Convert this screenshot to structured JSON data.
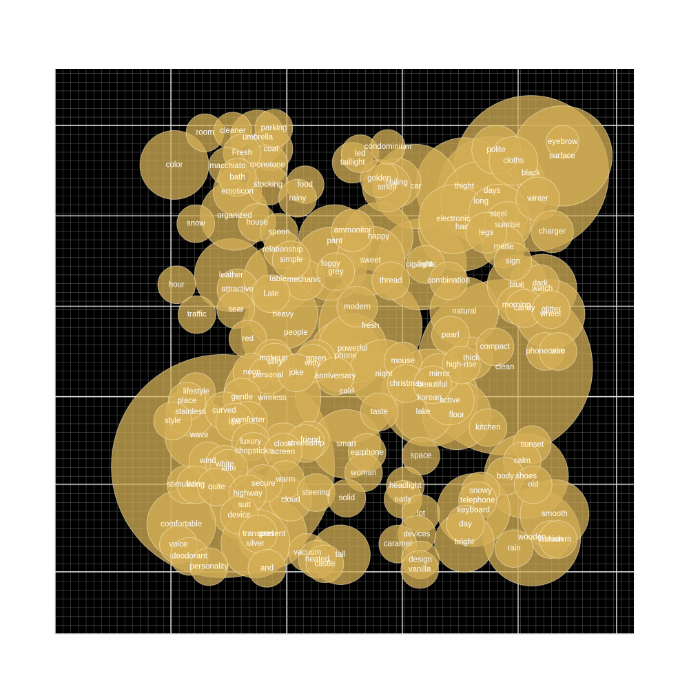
{
  "chart_data": {
    "type": "bubble",
    "title": "",
    "xlabel": "",
    "ylabel": "",
    "xlim": [
      0,
      1
    ],
    "ylim": [
      0,
      1
    ],
    "grid": true,
    "colors": {
      "background": "#000000",
      "bubble": "#d4af55",
      "major_grid": "#dddddd",
      "minor_grid": "#555555",
      "label": "#ffffff"
    },
    "points": [
      {
        "label": "eyebrow",
        "x": 0.877,
        "y": 0.871,
        "size": 9
      },
      {
        "label": "surface",
        "x": 0.876,
        "y": 0.846,
        "size": 85
      },
      {
        "label": "polite",
        "x": 0.762,
        "y": 0.857,
        "size": 20
      },
      {
        "label": "cloths",
        "x": 0.792,
        "y": 0.837,
        "size": 20
      },
      {
        "label": "black",
        "x": 0.822,
        "y": 0.815,
        "size": 205
      },
      {
        "label": "thight",
        "x": 0.707,
        "y": 0.792,
        "size": 80
      },
      {
        "label": "days",
        "x": 0.755,
        "y": 0.784,
        "size": 100
      },
      {
        "label": "long",
        "x": 0.736,
        "y": 0.765,
        "size": 55
      },
      {
        "label": "winter",
        "x": 0.834,
        "y": 0.77,
        "size": 16
      },
      {
        "label": "steel",
        "x": 0.766,
        "y": 0.743,
        "size": 30
      },
      {
        "label": "electronic",
        "x": 0.688,
        "y": 0.734,
        "size": 40
      },
      {
        "label": "sunrise",
        "x": 0.782,
        "y": 0.724,
        "size": 18
      },
      {
        "label": "hair",
        "x": 0.703,
        "y": 0.72,
        "size": 65
      },
      {
        "label": "legs",
        "x": 0.745,
        "y": 0.71,
        "size": 14
      },
      {
        "label": "charger",
        "x": 0.859,
        "y": 0.712,
        "size": 15
      },
      {
        "label": "matte",
        "x": 0.775,
        "y": 0.685,
        "size": 15
      },
      {
        "label": "car",
        "x": 0.623,
        "y": 0.792,
        "size": 60
      },
      {
        "label": "golden",
        "x": 0.56,
        "y": 0.806,
        "size": 12
      },
      {
        "label": "ceiling",
        "x": 0.59,
        "y": 0.799,
        "size": 20
      },
      {
        "label": "smell",
        "x": 0.573,
        "y": 0.79,
        "size": 20
      },
      {
        "label": "condominium",
        "x": 0.575,
        "y": 0.862,
        "size": 10
      },
      {
        "label": "led",
        "x": 0.527,
        "y": 0.85,
        "size": 12
      },
      {
        "label": "taillight",
        "x": 0.514,
        "y": 0.834,
        "size": 14
      },
      {
        "label": "room",
        "x": 0.259,
        "y": 0.887,
        "size": 12
      },
      {
        "label": "cleaner",
        "x": 0.307,
        "y": 0.89,
        "size": 12
      },
      {
        "label": "parking",
        "x": 0.378,
        "y": 0.895,
        "size": 12
      },
      {
        "label": "umbrella",
        "x": 0.35,
        "y": 0.879,
        "size": 25
      },
      {
        "label": "coat",
        "x": 0.373,
        "y": 0.858,
        "size": 16
      },
      {
        "label": "Fresh",
        "x": 0.323,
        "y": 0.851,
        "size": 12
      },
      {
        "label": "color",
        "x": 0.206,
        "y": 0.83,
        "size": 40
      },
      {
        "label": "macchiato",
        "x": 0.298,
        "y": 0.828,
        "size": 12
      },
      {
        "label": "monotone",
        "x": 0.367,
        "y": 0.83,
        "size": 14
      },
      {
        "label": "bath",
        "x": 0.315,
        "y": 0.808,
        "size": 12
      },
      {
        "label": "stocking",
        "x": 0.368,
        "y": 0.795,
        "size": 14
      },
      {
        "label": "food",
        "x": 0.432,
        "y": 0.795,
        "size": 12
      },
      {
        "label": "emoticon",
        "x": 0.315,
        "y": 0.783,
        "size": 20
      },
      {
        "label": "rainy",
        "x": 0.419,
        "y": 0.771,
        "size": 12
      },
      {
        "label": "organized",
        "x": 0.31,
        "y": 0.74,
        "size": 40
      },
      {
        "label": "house",
        "x": 0.349,
        "y": 0.728,
        "size": 12
      },
      {
        "label": "snow",
        "x": 0.243,
        "y": 0.726,
        "size": 12
      },
      {
        "label": "spoon",
        "x": 0.387,
        "y": 0.711,
        "size": 12
      },
      {
        "label": "ammonitor",
        "x": 0.514,
        "y": 0.714,
        "size": 15
      },
      {
        "label": "happy",
        "x": 0.559,
        "y": 0.703,
        "size": 40
      },
      {
        "label": "pant",
        "x": 0.483,
        "y": 0.695,
        "size": 45
      },
      {
        "label": "relationship",
        "x": 0.393,
        "y": 0.68,
        "size": 12
      },
      {
        "label": "sweet",
        "x": 0.545,
        "y": 0.661,
        "size": 40
      },
      {
        "label": "simple",
        "x": 0.408,
        "y": 0.662,
        "size": 12
      },
      {
        "label": "foggy",
        "x": 0.476,
        "y": 0.655,
        "size": 45
      },
      {
        "label": "grey",
        "x": 0.485,
        "y": 0.641,
        "size": 12
      },
      {
        "label": "cigarette",
        "x": 0.632,
        "y": 0.654,
        "size": 70
      },
      {
        "label": "light",
        "x": 0.64,
        "y": 0.654,
        "size": 12
      },
      {
        "label": "leather",
        "x": 0.304,
        "y": 0.635,
        "size": 45
      },
      {
        "label": "table",
        "x": 0.385,
        "y": 0.628,
        "size": 40
      },
      {
        "label": "mechanic",
        "x": 0.43,
        "y": 0.627,
        "size": 14
      },
      {
        "label": "thread",
        "x": 0.58,
        "y": 0.625,
        "size": 12
      },
      {
        "label": "combination",
        "x": 0.68,
        "y": 0.625,
        "size": 12
      },
      {
        "label": "hour",
        "x": 0.21,
        "y": 0.618,
        "size": 12
      },
      {
        "label": "attractive",
        "x": 0.315,
        "y": 0.61,
        "size": 14
      },
      {
        "label": "Late",
        "x": 0.373,
        "y": 0.602,
        "size": 12
      },
      {
        "label": "blue",
        "x": 0.798,
        "y": 0.618,
        "size": 30
      },
      {
        "label": "dark",
        "x": 0.838,
        "y": 0.62,
        "size": 12
      },
      {
        "label": "watch",
        "x": 0.842,
        "y": 0.611,
        "size": 40
      },
      {
        "label": "morning",
        "x": 0.797,
        "y": 0.582,
        "size": 12
      },
      {
        "label": "candy",
        "x": 0.811,
        "y": 0.576,
        "size": 12
      },
      {
        "label": "glitter",
        "x": 0.857,
        "y": 0.574,
        "size": 12
      },
      {
        "label": "wheel",
        "x": 0.856,
        "y": 0.566,
        "size": 40
      },
      {
        "label": "sign",
        "x": 0.791,
        "y": 0.659,
        "size": 12
      },
      {
        "label": "natural",
        "x": 0.707,
        "y": 0.571,
        "size": 40
      },
      {
        "label": "modern",
        "x": 0.522,
        "y": 0.579,
        "size": 14
      },
      {
        "label": "fresh",
        "x": 0.545,
        "y": 0.545,
        "size": 90
      },
      {
        "label": "traffic",
        "x": 0.245,
        "y": 0.565,
        "size": 12
      },
      {
        "label": "seat",
        "x": 0.312,
        "y": 0.574,
        "size": 12
      },
      {
        "label": "heavy",
        "x": 0.394,
        "y": 0.565,
        "size": 40
      },
      {
        "label": "people",
        "x": 0.416,
        "y": 0.533,
        "size": 100
      },
      {
        "label": "pearl",
        "x": 0.683,
        "y": 0.529,
        "size": 12
      },
      {
        "label": "red",
        "x": 0.333,
        "y": 0.522,
        "size": 12
      },
      {
        "label": "compact",
        "x": 0.76,
        "y": 0.508,
        "size": 12
      },
      {
        "label": "clean",
        "x": 0.777,
        "y": 0.472,
        "size": 260
      },
      {
        "label": "phonecase",
        "x": 0.847,
        "y": 0.5,
        "size": 12
      },
      {
        "label": "wire",
        "x": 0.869,
        "y": 0.5,
        "size": 12
      },
      {
        "label": "thick",
        "x": 0.719,
        "y": 0.488,
        "size": 15
      },
      {
        "label": "high-rise",
        "x": 0.702,
        "y": 0.476,
        "size": 12
      },
      {
        "label": "powerful",
        "x": 0.514,
        "y": 0.505,
        "size": 40
      },
      {
        "label": "phone",
        "x": 0.502,
        "y": 0.492,
        "size": 45
      },
      {
        "label": "makeup",
        "x": 0.377,
        "y": 0.488,
        "size": 12
      },
      {
        "label": "silky",
        "x": 0.38,
        "y": 0.481,
        "size": 12
      },
      {
        "label": "green",
        "x": 0.451,
        "y": 0.487,
        "size": 12
      },
      {
        "label": "witty",
        "x": 0.445,
        "y": 0.479,
        "size": 12
      },
      {
        "label": "mouse",
        "x": 0.601,
        "y": 0.483,
        "size": 12
      },
      {
        "label": "neon",
        "x": 0.34,
        "y": 0.463,
        "size": 12
      },
      {
        "label": "personal",
        "x": 0.368,
        "y": 0.458,
        "size": 12
      },
      {
        "label": "joke",
        "x": 0.417,
        "y": 0.462,
        "size": 12
      },
      {
        "label": "anniversary",
        "x": 0.484,
        "y": 0.456,
        "size": 12
      },
      {
        "label": "night",
        "x": 0.568,
        "y": 0.46,
        "size": 40
      },
      {
        "label": "mirror",
        "x": 0.664,
        "y": 0.46,
        "size": 14
      },
      {
        "label": "christmas",
        "x": 0.607,
        "y": 0.443,
        "size": 12
      },
      {
        "label": "beautiful",
        "x": 0.652,
        "y": 0.441,
        "size": 12
      },
      {
        "label": "cold",
        "x": 0.504,
        "y": 0.429,
        "size": 90
      },
      {
        "label": "korean",
        "x": 0.647,
        "y": 0.418,
        "size": 80
      },
      {
        "label": "active",
        "x": 0.682,
        "y": 0.413,
        "size": 20
      },
      {
        "label": "lifestyle",
        "x": 0.244,
        "y": 0.429,
        "size": 12
      },
      {
        "label": "gentle",
        "x": 0.323,
        "y": 0.419,
        "size": 12
      },
      {
        "label": "wireless",
        "x": 0.375,
        "y": 0.418,
        "size": 80
      },
      {
        "label": "place",
        "x": 0.228,
        "y": 0.412,
        "size": 12
      },
      {
        "label": "curved",
        "x": 0.292,
        "y": 0.395,
        "size": 12
      },
      {
        "label": "stainless",
        "x": 0.234,
        "y": 0.393,
        "size": 20
      },
      {
        "label": "taste",
        "x": 0.56,
        "y": 0.393,
        "size": 12
      },
      {
        "label": "lake",
        "x": 0.636,
        "y": 0.393,
        "size": 30
      },
      {
        "label": "floor",
        "x": 0.694,
        "y": 0.387,
        "size": 40
      },
      {
        "label": "comforter",
        "x": 0.334,
        "y": 0.378,
        "size": 12
      },
      {
        "label": "lips",
        "x": 0.31,
        "y": 0.375,
        "size": 12
      },
      {
        "label": "style",
        "x": 0.203,
        "y": 0.377,
        "size": 12
      },
      {
        "label": "kitchen",
        "x": 0.748,
        "y": 0.365,
        "size": 12
      },
      {
        "label": "wave",
        "x": 0.249,
        "y": 0.352,
        "size": 40
      },
      {
        "label": "luxury",
        "x": 0.338,
        "y": 0.34,
        "size": 12
      },
      {
        "label": "friend",
        "x": 0.441,
        "y": 0.343,
        "size": 12
      },
      {
        "label": "streetlamp",
        "x": 0.433,
        "y": 0.337,
        "size": 12
      },
      {
        "label": "close",
        "x": 0.394,
        "y": 0.336,
        "size": 15
      },
      {
        "label": "smart",
        "x": 0.503,
        "y": 0.336,
        "size": 40
      },
      {
        "label": "chopsticks",
        "x": 0.343,
        "y": 0.323,
        "size": 12
      },
      {
        "label": "screen",
        "x": 0.394,
        "y": 0.322,
        "size": 12
      },
      {
        "label": "earphone",
        "x": 0.539,
        "y": 0.321,
        "size": 12
      },
      {
        "label": "space",
        "x": 0.632,
        "y": 0.315,
        "size": 12
      },
      {
        "label": "sunset",
        "x": 0.824,
        "y": 0.335,
        "size": 12
      },
      {
        "label": "calm",
        "x": 0.807,
        "y": 0.306,
        "size": 12
      },
      {
        "label": "wind",
        "x": 0.264,
        "y": 0.306,
        "size": 12
      },
      {
        "label": "white",
        "x": 0.293,
        "y": 0.3,
        "size": 12
      },
      {
        "label": "latte",
        "x": 0.3,
        "y": 0.293,
        "size": 12
      },
      {
        "label": "body",
        "x": 0.778,
        "y": 0.279,
        "size": 12
      },
      {
        "label": "shoes",
        "x": 0.814,
        "y": 0.279,
        "size": 60
      },
      {
        "label": "old",
        "x": 0.826,
        "y": 0.264,
        "size": 12
      },
      {
        "label": "woman",
        "x": 0.533,
        "y": 0.285,
        "size": 12
      },
      {
        "label": "warm",
        "x": 0.398,
        "y": 0.273,
        "size": 12
      },
      {
        "label": "secure",
        "x": 0.36,
        "y": 0.266,
        "size": 12
      },
      {
        "label": "stimulating",
        "x": 0.226,
        "y": 0.264,
        "size": 12
      },
      {
        "label": "living",
        "x": 0.243,
        "y": 0.264,
        "size": 12
      },
      {
        "label": "quite",
        "x": 0.279,
        "y": 0.26,
        "size": 12
      },
      {
        "label": "headlight",
        "x": 0.605,
        "y": 0.262,
        "size": 12
      },
      {
        "label": "highway",
        "x": 0.333,
        "y": 0.248,
        "size": 12
      },
      {
        "label": "steering",
        "x": 0.451,
        "y": 0.25,
        "size": 12
      },
      {
        "label": "snowy",
        "x": 0.735,
        "y": 0.253,
        "size": 12
      },
      {
        "label": "solid",
        "x": 0.504,
        "y": 0.24,
        "size": 12
      },
      {
        "label": "early",
        "x": 0.601,
        "y": 0.238,
        "size": 12
      },
      {
        "label": "cloud",
        "x": 0.407,
        "y": 0.237,
        "size": 15
      },
      {
        "label": "telephone",
        "x": 0.73,
        "y": 0.236,
        "size": 12
      },
      {
        "label": "suit",
        "x": 0.327,
        "y": 0.228,
        "size": 40
      },
      {
        "label": "keyboard",
        "x": 0.723,
        "y": 0.219,
        "size": 45
      },
      {
        "label": "smooth",
        "x": 0.863,
        "y": 0.212,
        "size": 40
      },
      {
        "label": "lot",
        "x": 0.632,
        "y": 0.213,
        "size": 12
      },
      {
        "label": "device",
        "x": 0.318,
        "y": 0.21,
        "size": 12
      },
      {
        "label": "comfortable",
        "x": 0.218,
        "y": 0.194,
        "size": 40
      },
      {
        "label": "day",
        "x": 0.709,
        "y": 0.194,
        "size": 12
      },
      {
        "label": "transport",
        "x": 0.351,
        "y": 0.177,
        "size": 12
      },
      {
        "label": "present",
        "x": 0.375,
        "y": 0.177,
        "size": 40
      },
      {
        "label": "devices",
        "x": 0.625,
        "y": 0.176,
        "size": 12
      },
      {
        "label": "wooden",
        "x": 0.824,
        "y": 0.171,
        "size": 80
      },
      {
        "label": "fashion",
        "x": 0.856,
        "y": 0.167,
        "size": 12
      },
      {
        "label": "modern",
        "x": 0.869,
        "y": 0.167,
        "size": 12
      },
      {
        "label": "bright",
        "x": 0.707,
        "y": 0.162,
        "size": 30
      },
      {
        "label": "silver",
        "x": 0.346,
        "y": 0.16,
        "size": 40
      },
      {
        "label": "caramel",
        "x": 0.592,
        "y": 0.159,
        "size": 12
      },
      {
        "label": "voice",
        "x": 0.213,
        "y": 0.158,
        "size": 12
      },
      {
        "label": "rain",
        "x": 0.793,
        "y": 0.151,
        "size": 12
      },
      {
        "label": "vacuum",
        "x": 0.436,
        "y": 0.144,
        "size": 12
      },
      {
        "label": "tall",
        "x": 0.493,
        "y": 0.14,
        "size": 30
      },
      {
        "label": "deodorant",
        "x": 0.232,
        "y": 0.137,
        "size": 12
      },
      {
        "label": "heated",
        "x": 0.453,
        "y": 0.132,
        "size": 12
      },
      {
        "label": "design",
        "x": 0.631,
        "y": 0.131,
        "size": 12
      },
      {
        "label": "castle",
        "x": 0.466,
        "y": 0.124,
        "size": 12
      },
      {
        "label": "personality",
        "x": 0.266,
        "y": 0.119,
        "size": 12
      },
      {
        "label": "and",
        "x": 0.366,
        "y": 0.116,
        "size": 12
      },
      {
        "label": "vanilla",
        "x": 0.63,
        "y": 0.114,
        "size": 12
      },
      {
        "label": "",
        "x": 0.29,
        "y": 0.297,
        "size": 420
      }
    ]
  }
}
